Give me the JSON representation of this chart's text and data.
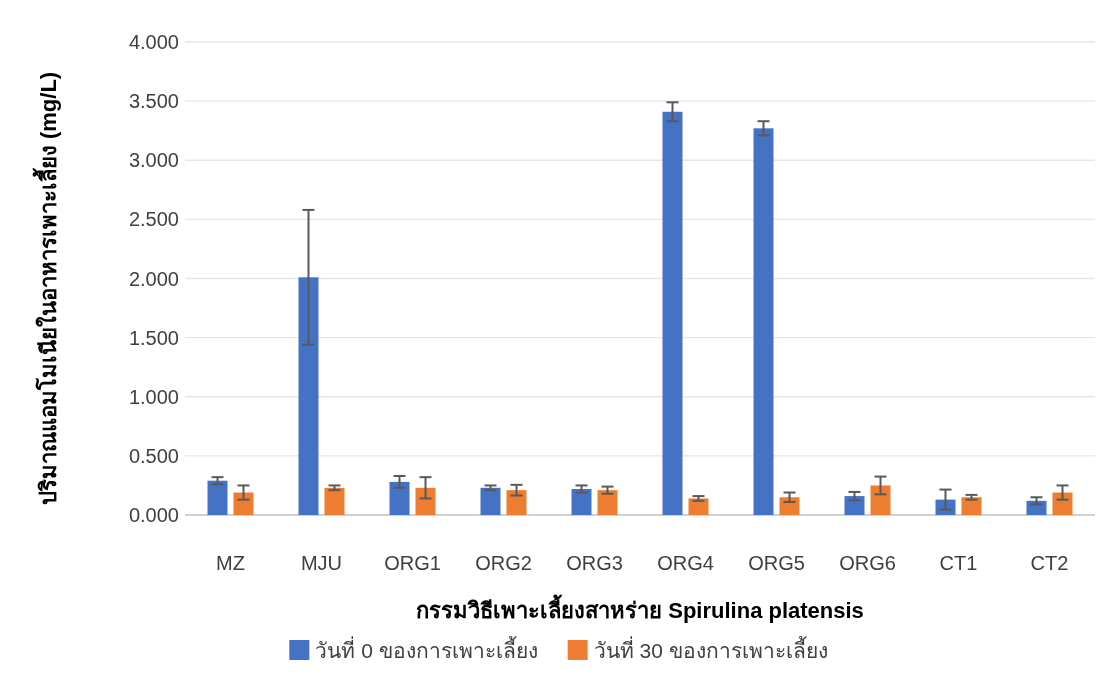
{
  "chart_data": {
    "type": "bar",
    "xlabel": "กรรมวิธีเพาะเลี้ยงสาหร่าย Spirulina platensis",
    "ylabel": "ปริมาณแอมโมเนียในอาหารเพาะเลี้ยง  (mg/L)",
    "categories": [
      "MZ",
      "MJU",
      "ORG1",
      "ORG2",
      "ORG3",
      "ORG4",
      "ORG5",
      "ORG6",
      "CT1",
      "CT2"
    ],
    "series": [
      {
        "name": "วันที่ 0 ของการเพาะเลี้ยง",
        "color": "#4472c4",
        "values": [
          0.29,
          2.01,
          0.28,
          0.23,
          0.22,
          3.41,
          3.27,
          0.16,
          0.13,
          0.12
        ],
        "errors": [
          0.03,
          0.57,
          0.05,
          0.02,
          0.03,
          0.08,
          0.06,
          0.035,
          0.085,
          0.03
        ]
      },
      {
        "name": "วันที่ 30 ของการเพาะเลี้ยง",
        "color": "#ed7d31",
        "values": [
          0.19,
          0.23,
          0.23,
          0.21,
          0.21,
          0.14,
          0.15,
          0.25,
          0.15,
          0.19
        ],
        "errors": [
          0.06,
          0.02,
          0.09,
          0.045,
          0.03,
          0.02,
          0.04,
          0.075,
          0.02,
          0.06
        ]
      }
    ],
    "ylim": [
      0,
      4
    ],
    "yticks": [
      {
        "value": 0,
        "label": "0.000"
      },
      {
        "value": 0.5,
        "label": "0.500"
      },
      {
        "value": 1,
        "label": "1.000"
      },
      {
        "value": 1.5,
        "label": "1.500"
      },
      {
        "value": 2,
        "label": "2.000"
      },
      {
        "value": 2.5,
        "label": "2.500"
      },
      {
        "value": 3,
        "label": "3.000"
      },
      {
        "value": 3.5,
        "label": "3.500"
      },
      {
        "value": 4,
        "label": "4.000"
      }
    ],
    "grid": "y",
    "legend": "bottom"
  }
}
